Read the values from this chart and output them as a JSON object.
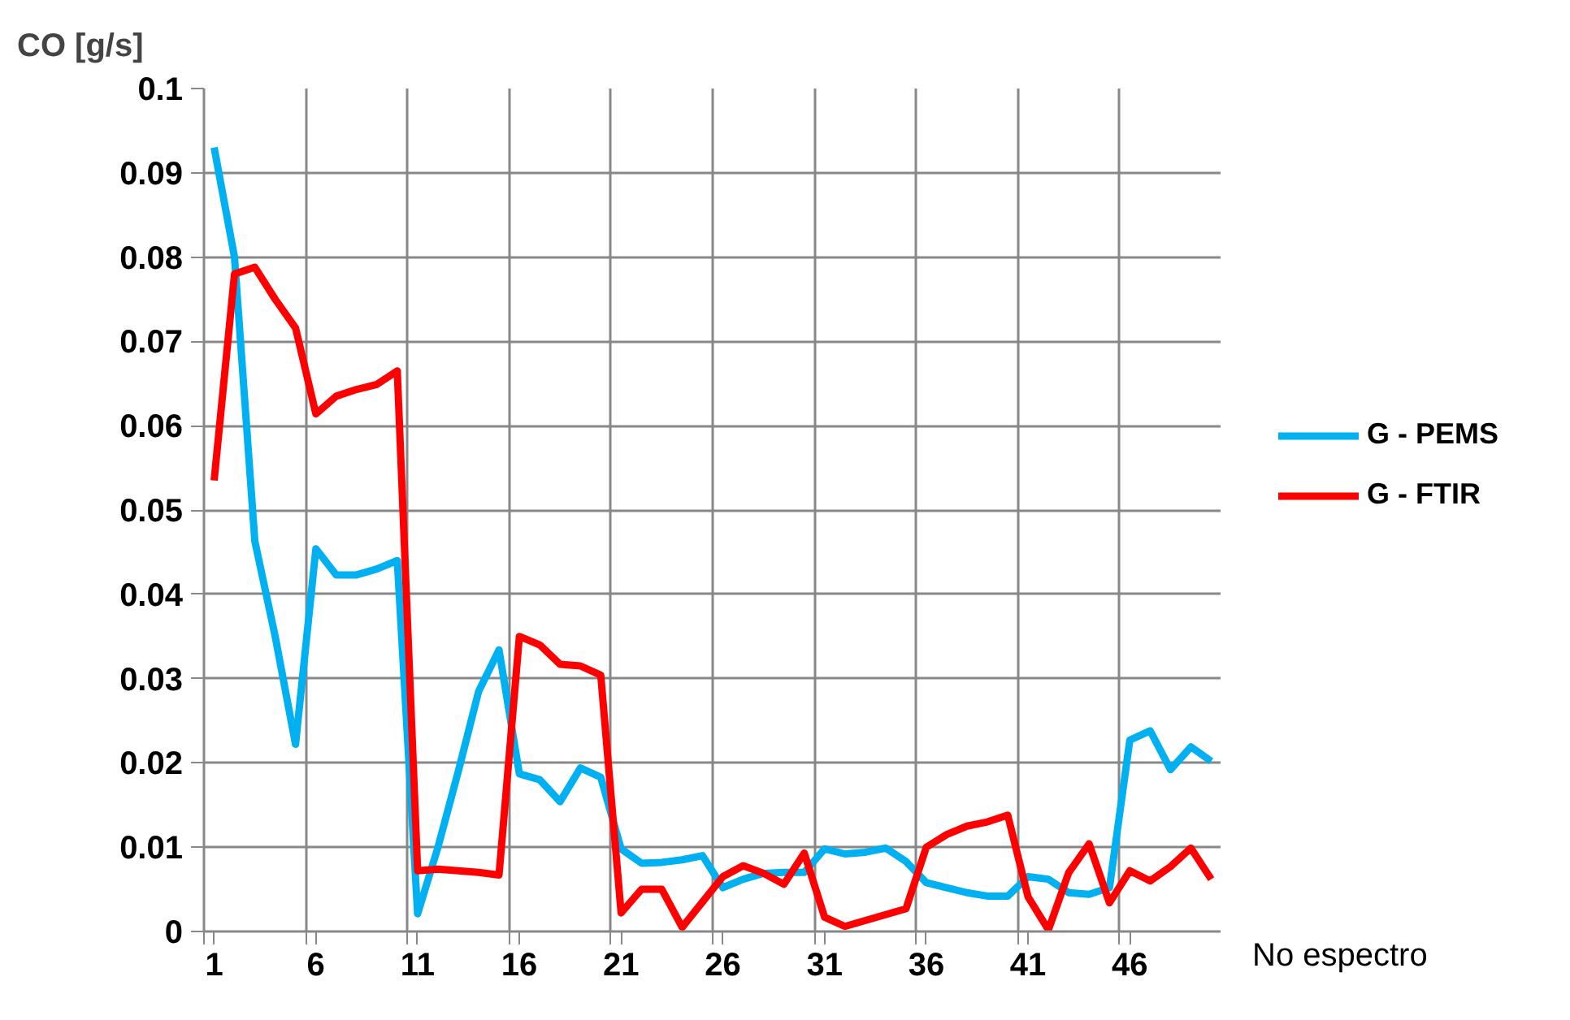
{
  "chart_data": {
    "type": "line",
    "ylabel": "CO [g/s]",
    "xlabel": "No espectro",
    "x": [
      1,
      2,
      3,
      4,
      5,
      6,
      7,
      8,
      9,
      10,
      11,
      12,
      13,
      14,
      15,
      16,
      17,
      18,
      19,
      20,
      21,
      22,
      23,
      24,
      25,
      26,
      27,
      28,
      29,
      30,
      31,
      32,
      33,
      34,
      35,
      36,
      37,
      38,
      39,
      40,
      41,
      42,
      43,
      44,
      45,
      46,
      47,
      48,
      49,
      50
    ],
    "xlim": [
      0.5,
      50.5
    ],
    "xticks": [
      {
        "value": 0.5,
        "label": null
      },
      {
        "value": 1,
        "label": "1"
      },
      {
        "value": 5.5,
        "label": null
      },
      {
        "value": 6,
        "label": "6"
      },
      {
        "value": 10.5,
        "label": null
      },
      {
        "value": 11,
        "label": "11"
      },
      {
        "value": 15.5,
        "label": null
      },
      {
        "value": 16,
        "label": "16"
      },
      {
        "value": 20.5,
        "label": null
      },
      {
        "value": 21,
        "label": "21"
      },
      {
        "value": 25.5,
        "label": null
      },
      {
        "value": 26,
        "label": "26"
      },
      {
        "value": 30.5,
        "label": null
      },
      {
        "value": 31,
        "label": "31"
      },
      {
        "value": 35.5,
        "label": null
      },
      {
        "value": 36,
        "label": "36"
      },
      {
        "value": 40.5,
        "label": null
      },
      {
        "value": 41,
        "label": "41"
      },
      {
        "value": 45.5,
        "label": null
      },
      {
        "value": 46,
        "label": "46"
      },
      {
        "value": 50.5,
        "label": null
      }
    ],
    "ylim": [
      0,
      0.1
    ],
    "yticks": [
      0,
      0.01,
      0.02,
      0.03,
      0.04,
      0.05,
      0.06,
      0.07,
      0.08,
      0.09,
      0.1
    ],
    "grid": true,
    "legend": "right",
    "marker": "none",
    "line_style": "solid",
    "series": [
      {
        "name": "G - PEMS",
        "color": "#00b0f0",
        "values": [
          0.093,
          0.08,
          0.0463,
          0.035,
          0.0222,
          0.0454,
          0.0423,
          0.0423,
          0.043,
          0.044,
          0.0021,
          0.01,
          0.019,
          0.0285,
          0.0334,
          0.0187,
          0.018,
          0.0154,
          0.0194,
          0.0183,
          0.0098,
          0.0081,
          0.0082,
          0.0085,
          0.009,
          0.0052,
          0.0062,
          0.0069,
          0.007,
          0.007,
          0.0098,
          0.0092,
          0.0094,
          0.0099,
          0.0083,
          0.0058,
          0.0052,
          0.0046,
          0.0042,
          0.0042,
          0.0065,
          0.0062,
          0.0046,
          0.0044,
          0.0052,
          0.0227,
          0.0238,
          0.0192,
          0.0219,
          0.0202
        ]
      },
      {
        "name": "G - FTIR",
        "color": "#ff0000",
        "values": [
          0.0535,
          0.078,
          0.0788,
          0.075,
          0.0716,
          0.0614,
          0.0635,
          0.0643,
          0.0649,
          0.0665,
          0.0072,
          0.0074,
          0.0072,
          0.007,
          0.0067,
          0.035,
          0.034,
          0.0317,
          0.0315,
          0.0304,
          0.0022,
          0.005,
          0.005,
          0.0005,
          0.0035,
          0.0065,
          0.0078,
          0.0069,
          0.0056,
          0.0093,
          0.0017,
          0.0006,
          0.0013,
          0.002,
          0.0027,
          0.01,
          0.0115,
          0.0125,
          0.013,
          0.0138,
          0.0041,
          0.0002,
          0.007,
          0.0104,
          0.0034,
          0.0072,
          0.006,
          0.0077,
          0.0099,
          0.0062
        ]
      }
    ]
  }
}
